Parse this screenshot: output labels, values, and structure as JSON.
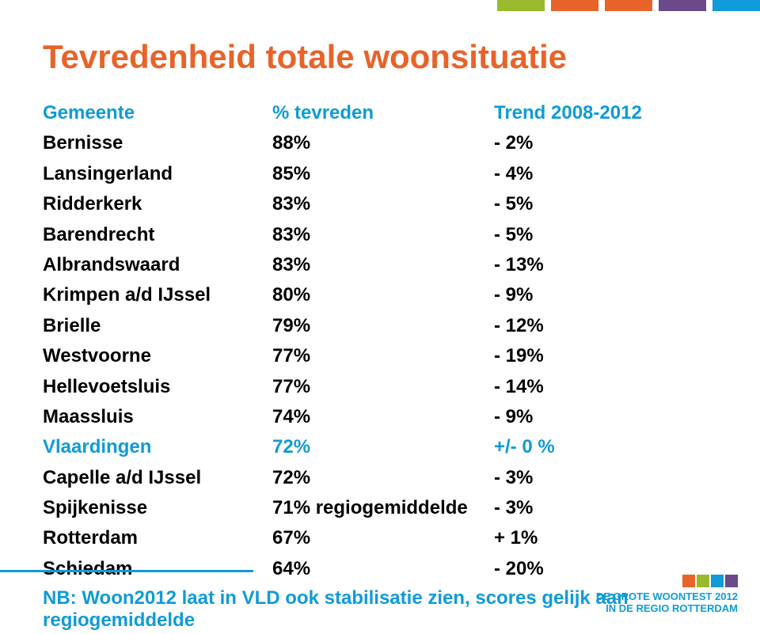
{
  "title": "Tevredenheid totale woonsituatie",
  "title_color": "#e8632a",
  "title_fontsize": 42,
  "body_fontsize": 24,
  "header_color": "#0f9bd8",
  "default_color": "#000000",
  "highlight_color": "#0f9bd8",
  "stripes": {
    "colors": [
      "#9aba2e",
      "#e8632a",
      "#e8632a",
      "#6a4a8a",
      "#0f9bd8"
    ]
  },
  "columns": {
    "c1": "Gemeente",
    "c2": "% tevreden",
    "c3": "Trend 2008-2012"
  },
  "rows": [
    {
      "c1": "Bernisse",
      "c2": "88%",
      "c3": "- 2%",
      "style": "black"
    },
    {
      "c1": "Lansingerland",
      "c2": "85%",
      "c3": "- 4%",
      "style": "black"
    },
    {
      "c1": "Ridderkerk",
      "c2": "83%",
      "c3": "- 5%",
      "style": "black"
    },
    {
      "c1": "Barendrecht",
      "c2": "83%",
      "c3": "- 5%",
      "style": "black"
    },
    {
      "c1": "Albrandswaard",
      "c2": "83%",
      "c3": "- 13%",
      "style": "black"
    },
    {
      "c1": "Krimpen a/d IJssel",
      "c2": "80%",
      "c3": "- 9%",
      "style": "black"
    },
    {
      "c1": "Brielle",
      "c2": "79%",
      "c3": "- 12%",
      "style": "black"
    },
    {
      "c1": "Westvoorne",
      "c2": "77%",
      "c3": "- 19%",
      "style": "black"
    },
    {
      "c1": "Hellevoetsluis",
      "c2": "77%",
      "c3": "- 14%",
      "style": "black"
    },
    {
      "c1": "Maassluis",
      "c2": "74%",
      "c3": "- 9%",
      "style": "black"
    },
    {
      "c1": "Vlaardingen",
      "c2": "72%",
      "c3": "+/- 0 %",
      "style": "blue"
    },
    {
      "c1": "Capelle a/d IJssel",
      "c2": "72%",
      "c3": "- 3%",
      "style": "black"
    },
    {
      "c1": "Spijkenisse",
      "c2": "71% regiogemiddelde",
      "c3": "- 3%",
      "style": "black"
    },
    {
      "c1": "Rotterdam",
      "c2": "67%",
      "c3": "+ 1%",
      "style": "black"
    },
    {
      "c1": "Schiedam",
      "c2": "64%",
      "c3": "- 20%",
      "style": "black"
    }
  ],
  "footnote": "NB: Woon2012 laat in VLD ook stabilisatie zien, scores gelijk aan regiogemiddelde",
  "logo": {
    "line1": "DE GROTE WOONTEST 2012",
    "line2": "IN DE REGIO ROTTERDAM",
    "square_colors": [
      "#e8632a",
      "#9aba2e",
      "#0f9bd8",
      "#6a4a8a"
    ]
  },
  "left_line_color": "#0f9bd8"
}
